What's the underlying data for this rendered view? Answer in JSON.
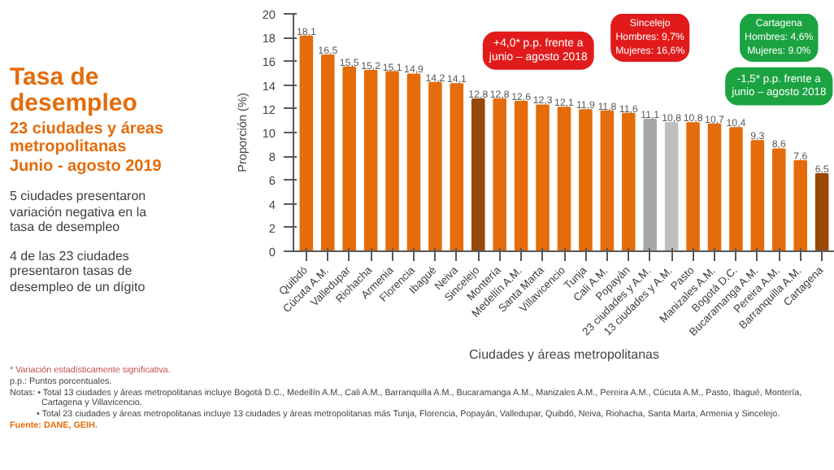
{
  "chart_data": {
    "type": "bar",
    "title": "Tasa de\ndesempleo",
    "subtitle": "23 ciudades y áreas\nmetropolitanas\nJunio - agosto 2019",
    "xlabel": "Ciudades y áreas metropolitanas",
    "ylabel": "Proporción (%)",
    "categories": [
      "Quibdó",
      "Cúcuta A.M.",
      "Valledupar",
      "Riohacha",
      "Armenia",
      "Florencia",
      "Ibagué",
      "Neiva",
      "Sincelejo",
      "Montería",
      "Medellín A.M.",
      "Santa Marta",
      "Villavicencio",
      "Tunja",
      "Cali A.M.",
      "Popayán",
      "23 ciudades y A.M.",
      "13 ciudades y A.M.",
      "Pasto",
      "Manizales A.M.",
      "Bogotá D.C.",
      "Bucaramanga A.M.",
      "Pereira A.M.",
      "Barranquilla A.M.",
      "Cartagena"
    ],
    "values": [
      18.1,
      16.5,
      15.5,
      15.2,
      15.1,
      14.9,
      14.2,
      14.1,
      12.8,
      12.8,
      12.6,
      12.3,
      12.1,
      11.9,
      11.8,
      11.6,
      11.1,
      10.8,
      10.8,
      10.7,
      10.4,
      9.3,
      8.6,
      7.6,
      6.5
    ],
    "value_labels": [
      "18,1",
      "16,5",
      "15,5",
      "15,2",
      "15,1",
      "14,9",
      "14,2",
      "14,1",
      "12,8",
      "12,8",
      "12,6",
      "12,3",
      "12,1",
      "11,9",
      "11,8",
      "11,6",
      "11,1",
      "10,8",
      "10,8",
      "10,7",
      "10,4",
      "9,3",
      "8,6",
      "7,6",
      "6,5"
    ],
    "colors": [
      "#e46c0a",
      "#e46c0a",
      "#e46c0a",
      "#e46c0a",
      "#e46c0a",
      "#e46c0a",
      "#e46c0a",
      "#e46c0a",
      "#984807",
      "#e46c0a",
      "#e46c0a",
      "#e46c0a",
      "#e46c0a",
      "#e46c0a",
      "#e46c0a",
      "#e46c0a",
      "#a6a6a6",
      "#bfbfbf",
      "#e46c0a",
      "#e46c0a",
      "#e46c0a",
      "#e46c0a",
      "#e46c0a",
      "#e46c0a",
      "#984807"
    ],
    "ylim": [
      0,
      20
    ],
    "yticks": [
      0,
      2,
      4,
      6,
      8,
      10,
      12,
      14,
      16,
      18,
      20
    ],
    "grid": false,
    "annotations": [
      "5 ciudades presentaron\nvariación negativa en la\ntasa de desempleo",
      "4 de las 23 ciudades\npresentaron tasas de\ndesempleo de un dígito",
      "+4,0* p.p. frente a\njunio – agosto 2018",
      "Sincelejo\nHombres: 9,7%\nMujeres: 16,6%",
      "Cartagena\nHombres: 4,6%\nMujeres: 9.0%",
      "-1,5* p.p. frente a\njunio – agosto 2018",
      "* Variación estadísticamente significativa.",
      "p.p.: Puntos porcentuales.",
      "Notas: • Total 13 ciudades y áreas metropolitanas incluye Bogotá D.C., Medellín A.M., Cali A.M., Barranquilla A.M., Bucaramanga A.M., Manizales A.M., Pereira A.M., Cúcuta A.M., Pasto, Ibagué, Montería,\n             Cartagena y Villavicencio.\n           • Total 23 ciudades y áreas metropolitanas incluye 13 ciudades y áreas metropolitanas más Tunja, Florencia, Popayán, Valledupar, Quibdó, Neiva, Riohacha, Santa Marta, Armenia y Sincelejo.",
      "Fuente: DANE, GEIH."
    ]
  }
}
